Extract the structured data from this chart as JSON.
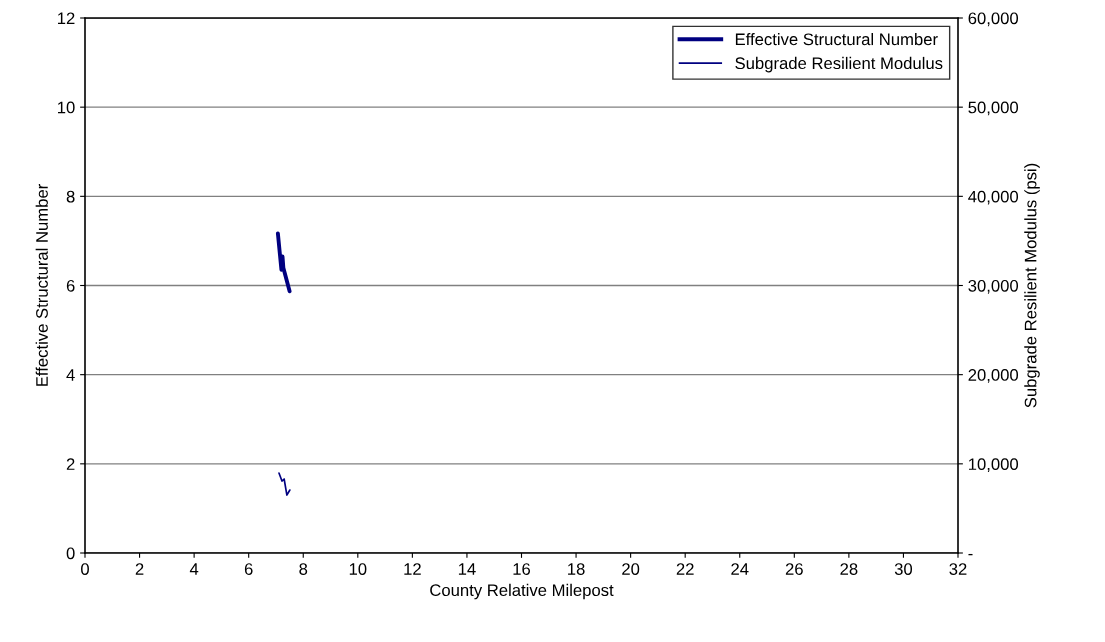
{
  "chart_data": {
    "type": "line",
    "xlabel": "County Relative Milepost",
    "ylabel": "Effective Structural Number",
    "y2label": "Subgrade Resilient Modulus (psi)",
    "xlim": [
      0,
      32
    ],
    "xticks": [
      0,
      2,
      4,
      6,
      8,
      10,
      12,
      14,
      16,
      18,
      20,
      22,
      24,
      26,
      28,
      30,
      32
    ],
    "ylim": [
      0,
      12
    ],
    "yticks": [
      0,
      2,
      4,
      6,
      8,
      10,
      12
    ],
    "y2lim": [
      0,
      60000
    ],
    "y2ticks": [
      {
        "value": 0,
        "label": "-"
      },
      {
        "value": 10000,
        "label": "10,000"
      },
      {
        "value": 20000,
        "label": "20,000"
      },
      {
        "value": 30000,
        "label": "30,000"
      },
      {
        "value": 40000,
        "label": "40,000"
      },
      {
        "value": 50000,
        "label": "50,000"
      },
      {
        "value": 60000,
        "label": "60,000"
      }
    ],
    "grid": "y",
    "legend": "top right",
    "series": [
      {
        "name": "Effective Structural Number",
        "color": "#000080",
        "x": [
          7.07,
          7.2,
          7.24,
          7.27,
          7.5
        ],
        "values": [
          7.17,
          6.35,
          6.65,
          6.4,
          5.87
        ]
      },
      {
        "name": "Subgrade Resilient Modulus",
        "color": "#000080",
        "axis": "y2",
        "x": [
          7.11,
          7.22,
          7.3,
          7.4,
          7.51
        ],
        "values": [
          8970,
          8070,
          8300,
          6500,
          7060
        ]
      }
    ]
  }
}
